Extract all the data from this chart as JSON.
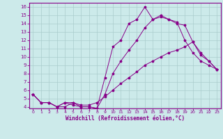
{
  "xlabel": "Windchill (Refroidissement éolien,°C)",
  "background_color": "#cceaea",
  "line_color": "#880088",
  "grid_color": "#aacccc",
  "xlim": [
    -0.5,
    23.5
  ],
  "ylim": [
    3.8,
    16.5
  ],
  "xticks": [
    0,
    1,
    2,
    3,
    4,
    5,
    6,
    7,
    8,
    9,
    10,
    11,
    12,
    13,
    14,
    15,
    16,
    17,
    18,
    19,
    20,
    21,
    22,
    23
  ],
  "yticks": [
    4,
    5,
    6,
    7,
    8,
    9,
    10,
    11,
    12,
    13,
    14,
    15,
    16
  ],
  "line1_x": [
    0,
    1,
    2,
    3,
    4,
    5,
    6,
    7,
    8,
    9,
    10,
    11,
    12,
    13,
    14,
    15,
    16,
    17,
    18,
    19,
    20,
    21,
    22,
    23
  ],
  "line1_y": [
    5.5,
    4.5,
    4.5,
    4.0,
    4.0,
    4.5,
    4.0,
    4.0,
    3.8,
    7.5,
    11.2,
    12.0,
    14.0,
    14.5,
    16.0,
    14.5,
    15.0,
    14.5,
    14.0,
    13.8,
    11.8,
    10.5,
    9.5,
    8.5
  ],
  "line2_x": [
    0,
    1,
    2,
    3,
    4,
    5,
    6,
    7,
    8,
    9,
    10,
    11,
    12,
    13,
    14,
    15,
    16,
    17,
    18,
    19,
    20,
    21,
    22,
    23
  ],
  "line2_y": [
    5.5,
    4.5,
    4.5,
    4.0,
    4.5,
    4.5,
    4.2,
    4.2,
    4.5,
    5.2,
    6.0,
    6.8,
    7.5,
    8.2,
    9.0,
    9.5,
    10.0,
    10.5,
    10.8,
    11.2,
    11.8,
    10.2,
    9.5,
    8.5
  ],
  "line3_x": [
    0,
    1,
    2,
    3,
    4,
    5,
    6,
    7,
    8,
    9,
    10,
    11,
    12,
    13,
    14,
    15,
    16,
    17,
    18,
    19,
    20,
    21,
    22,
    23
  ],
  "line3_y": [
    5.5,
    4.5,
    4.5,
    4.0,
    4.5,
    4.2,
    4.0,
    4.0,
    3.8,
    5.5,
    8.0,
    9.5,
    10.8,
    12.0,
    13.5,
    14.5,
    14.8,
    14.5,
    14.2,
    12.0,
    10.5,
    9.5,
    9.0,
    8.5
  ]
}
